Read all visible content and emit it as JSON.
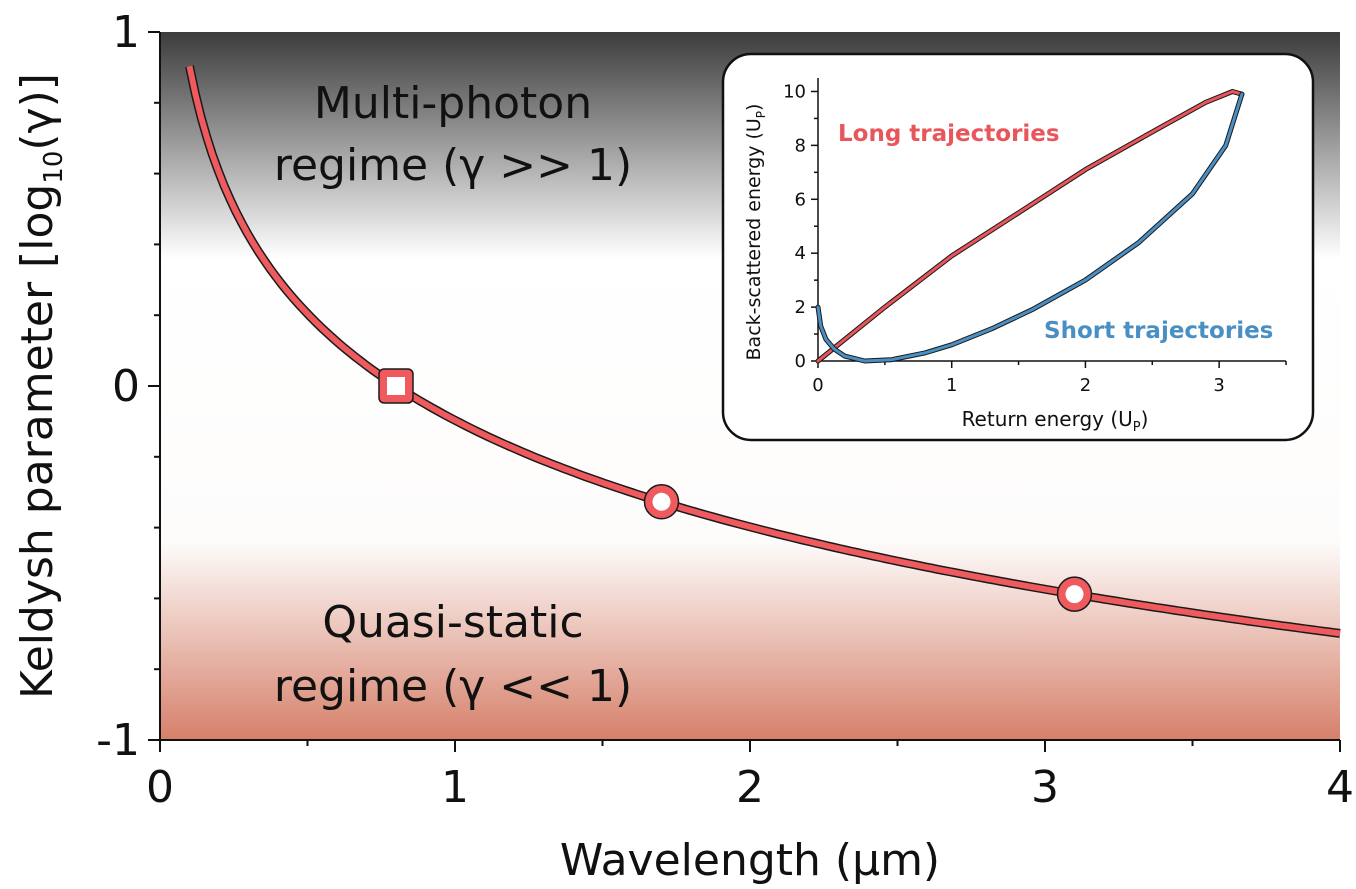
{
  "chart_data": [
    {
      "type": "line",
      "xlabel": "Wavelength (µm)",
      "ylabel_main": "Keldysh parameter [log",
      "ylabel_sub": "10",
      "ylabel_tail": "(γ)]",
      "xlim": [
        0,
        4
      ],
      "ylim": [
        -1,
        1
      ],
      "xticks": [
        0,
        1,
        2,
        3,
        4
      ],
      "xtick_labels": [
        "0",
        "1",
        "2",
        "3",
        "4"
      ],
      "yticks": [
        -1,
        0,
        1
      ],
      "ytick_labels": [
        "-1",
        "0",
        "1"
      ],
      "background_gradient": [
        "#3c3c3c",
        "#ffffff",
        "#fdfcfb",
        "#d6806a"
      ],
      "line_color": "#ee5a5e",
      "series": [
        {
          "name": "Keldysh parameter",
          "curve_constant_um": 0.8,
          "x_range": [
            0.1,
            4.0
          ]
        }
      ],
      "markers": [
        {
          "x": 0.8,
          "y": 0.0,
          "shape": "square"
        },
        {
          "x": 1.7,
          "y": -0.327,
          "shape": "circle"
        },
        {
          "x": 3.1,
          "y": -0.588,
          "shape": "circle"
        }
      ],
      "annotations": {
        "multiphoton_line1": "Multi-photon",
        "multiphoton_line2": "regime (γ >> 1)",
        "quasistatic_line1": "Quasi-static",
        "quasistatic_line2": "regime (γ << 1)"
      }
    },
    {
      "type": "line",
      "xlabel_main": "Return energy (U",
      "xlabel_sub": "P",
      "xlabel_tail": ")",
      "ylabel_main": "Back-scattered energy (U",
      "ylabel_sub": "P",
      "ylabel_tail": ")",
      "xlim": [
        0,
        3.5
      ],
      "ylim": [
        0,
        10.5
      ],
      "xticks": [
        0,
        1,
        2,
        3
      ],
      "xtick_labels": [
        "0",
        "1",
        "2",
        "3"
      ],
      "yticks": [
        0,
        2,
        4,
        6,
        8,
        10
      ],
      "ytick_labels": [
        "0",
        "2",
        "4",
        "6",
        "8",
        "10"
      ],
      "series": [
        {
          "name": "Long trajectories",
          "color": "#e8555a",
          "x": [
            0.0,
            0.5,
            1.0,
            1.5,
            2.0,
            2.5,
            2.9,
            3.1,
            3.17
          ],
          "y": [
            0.0,
            2.0,
            3.9,
            5.5,
            7.1,
            8.5,
            9.6,
            10.0,
            9.9
          ]
        },
        {
          "name": "Short trajectories",
          "color": "#4a8fc4",
          "x": [
            0.0,
            0.02,
            0.06,
            0.12,
            0.2,
            0.35,
            0.55,
            0.8,
            1.0,
            1.3,
            1.6,
            2.0,
            2.4,
            2.8,
            3.05,
            3.17
          ],
          "y": [
            2.0,
            1.3,
            0.8,
            0.45,
            0.18,
            0.0,
            0.05,
            0.3,
            0.6,
            1.2,
            1.9,
            3.0,
            4.4,
            6.2,
            8.0,
            9.9
          ]
        }
      ],
      "labels": {
        "long": "Long trajectories",
        "short": "Short trajectories"
      }
    }
  ]
}
